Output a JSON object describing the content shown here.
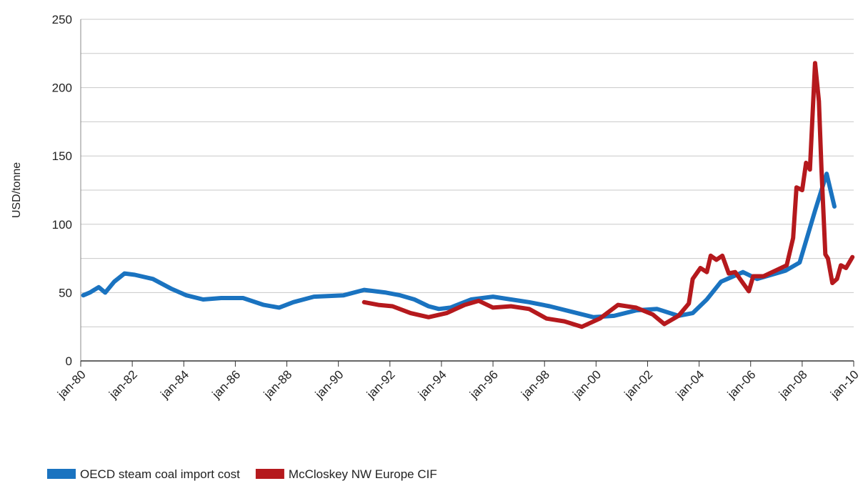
{
  "chart_data": {
    "type": "line",
    "ylabel": "USD/tonne",
    "xlim": [
      1980,
      2010
    ],
    "xticks": [
      {
        "value": 1980,
        "label": "jan-80"
      },
      {
        "value": 1982,
        "label": "jan-82"
      },
      {
        "value": 1984,
        "label": "jan-84"
      },
      {
        "value": 1986,
        "label": "jan-86"
      },
      {
        "value": 1988,
        "label": "jan-88"
      },
      {
        "value": 1990,
        "label": "jan-90"
      },
      {
        "value": 1992,
        "label": "jan-92"
      },
      {
        "value": 1994,
        "label": "jan-94"
      },
      {
        "value": 1996,
        "label": "jan-96"
      },
      {
        "value": 1998,
        "label": "jan-98"
      },
      {
        "value": 2000,
        "label": "jan-00"
      },
      {
        "value": 2002,
        "label": "jan-02"
      },
      {
        "value": 2004,
        "label": "jan-04"
      },
      {
        "value": 2006,
        "label": "jan-06"
      },
      {
        "value": 2008,
        "label": "jan-08"
      },
      {
        "value": 2010,
        "label": "jan-10"
      }
    ],
    "ylim": [
      0,
      250
    ],
    "yticks": [
      0,
      50,
      100,
      150,
      200,
      250
    ],
    "ygrid": [
      25,
      50,
      75,
      100,
      125,
      150,
      175,
      200,
      225,
      250
    ],
    "legend": "bottom-left",
    "series": [
      {
        "name": "OECD steam coal import cost",
        "color": "#1a73c0",
        "x": [
          1980.1,
          1980.35,
          1980.7,
          1980.95,
          1981.3,
          1981.7,
          1982.1,
          1982.8,
          1983.5,
          1984.1,
          1984.75,
          1985.45,
          1986.3,
          1987.1,
          1987.7,
          1988.25,
          1989.05,
          1990.2,
          1991.0,
          1991.85,
          1992.4,
          1992.95,
          1993.5,
          1993.9,
          1994.35,
          1995.15,
          1996.0,
          1996.7,
          1997.4,
          1998.2,
          1999.05,
          1999.9,
          2000.7,
          2001.55,
          2002.37,
          2003.2,
          2003.75,
          2004.3,
          2004.85,
          2005.7,
          2006.25,
          2007.35,
          2007.9,
          2008.5,
          2008.95,
          2009.25
        ],
        "values": [
          48,
          50,
          54,
          50,
          58,
          64,
          63,
          60,
          53,
          48,
          45,
          46,
          46,
          41,
          39,
          43,
          47,
          48,
          52,
          50,
          48,
          45,
          40,
          38,
          39,
          45,
          47,
          45,
          43,
          40,
          36,
          32,
          33,
          37,
          38,
          33,
          35,
          45,
          58,
          65,
          60,
          66,
          72,
          110,
          137,
          113
        ]
      },
      {
        "name": "McCloskey NW Europe CIF",
        "color": "#b5191d",
        "x": [
          1991.0,
          1991.55,
          1992.1,
          1992.8,
          1993.5,
          1994.2,
          1994.9,
          1995.45,
          1996.0,
          1996.7,
          1997.4,
          1998.08,
          1998.77,
          1999.45,
          2000.15,
          2000.85,
          2001.55,
          2002.2,
          2002.65,
          2003.2,
          2003.6,
          2003.75,
          2004.05,
          2004.3,
          2004.45,
          2004.67,
          2004.9,
          2005.15,
          2005.4,
          2005.7,
          2005.93,
          2006.1,
          2006.5,
          2007.4,
          2007.65,
          2007.78,
          2008.0,
          2008.15,
          2008.3,
          2008.5,
          2008.65,
          2008.75,
          2008.9,
          2009.0,
          2009.17,
          2009.35,
          2009.5,
          2009.7,
          2009.95
        ],
        "values": [
          43,
          41,
          40,
          35,
          32,
          35,
          41,
          44,
          39,
          40,
          38,
          31,
          29,
          25,
          31,
          41,
          39,
          34,
          27,
          33,
          42,
          60,
          68,
          65,
          77,
          74,
          77,
          64,
          65,
          57,
          51,
          62,
          62,
          70,
          90,
          127,
          125,
          145,
          140,
          218,
          190,
          140,
          78,
          75,
          57,
          60,
          70,
          68,
          76
        ]
      }
    ]
  }
}
